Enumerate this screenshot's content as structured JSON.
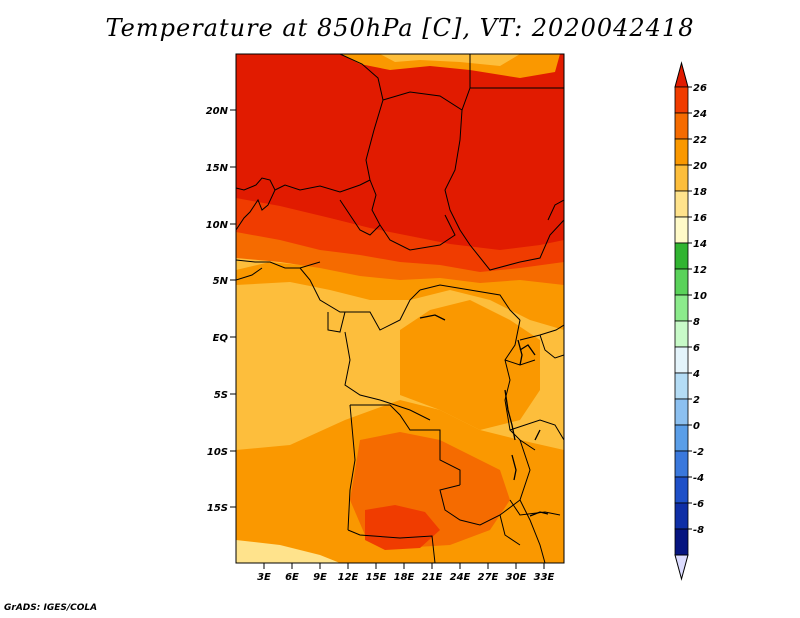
{
  "title": "Temperature at 850hPa [C], VT: 2020042418",
  "credit": "GrADS: IGES/COLA",
  "lat_labels": [
    "20N",
    "15N",
    "10N",
    "5N",
    "EQ",
    "5S",
    "10S",
    "15S"
  ],
  "lon_labels": [
    "3E",
    "6E",
    "9E",
    "12E",
    "15E",
    "18E",
    "21E",
    "24E",
    "27E",
    "30E",
    "33E"
  ],
  "colorbar": {
    "labels": [
      "26",
      "24",
      "22",
      "20",
      "18",
      "16",
      "14",
      "12",
      "10",
      "8",
      "6",
      "4",
      "2",
      "0",
      "-2",
      "-4",
      "-6",
      "-8"
    ],
    "colors": [
      "#e11b00",
      "#f03c00",
      "#f56b00",
      "#fa9800",
      "#fdbe3c",
      "#ffe38c",
      "#fffac8",
      "#31b431",
      "#5ad25a",
      "#8ceb8c",
      "#c8fac8",
      "#e4f4fb",
      "#b4dcf5",
      "#8cc0f0",
      "#5a9ee8",
      "#3a78dc",
      "#1e50c8",
      "#0f2fa6",
      "#061580"
    ],
    "min_arrow_color": "#dcdcff"
  },
  "map_colors": {
    "hot": "#e11b00",
    "orange_red": "#f03c00",
    "orange": "#f56b00",
    "light_orange": "#fa9800",
    "gold": "#fdbe3c",
    "pale": "#ffe38c"
  }
}
